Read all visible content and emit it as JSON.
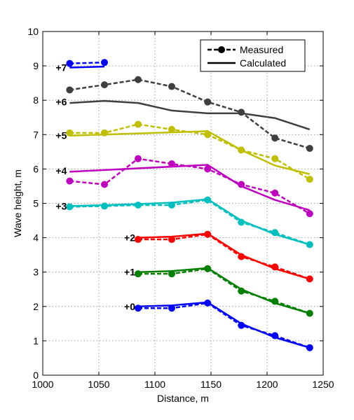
{
  "chart_data": {
    "type": "line",
    "title": "",
    "xlabel": "Distance, m",
    "ylabel": "Wave height, m",
    "xlim": [
      1000,
      1250
    ],
    "ylim": [
      0,
      10
    ],
    "xticks": [
      1000,
      1050,
      1100,
      1150,
      1200,
      1250
    ],
    "yticks": [
      0,
      1,
      2,
      3,
      4,
      5,
      6,
      7,
      8,
      9,
      10
    ],
    "grid": true,
    "legend": {
      "placement": "top-right",
      "entries": [
        {
          "label": "Measured",
          "style": "dashed-marker"
        },
        {
          "label": "Calculated",
          "style": "solid"
        }
      ]
    },
    "series": [
      {
        "offset_label": "+0",
        "color": "#0000ff",
        "label_at": [
          1085,
          2.0
        ],
        "measured": {
          "x": [
            1085,
            1115,
            1147,
            1177,
            1207,
            1238
          ],
          "y": [
            1.95,
            1.95,
            2.1,
            1.45,
            1.15,
            0.8
          ]
        },
        "calculated": {
          "x": [
            1085,
            1115,
            1147,
            1177,
            1207,
            1238
          ],
          "y": [
            2.0,
            2.03,
            2.12,
            1.5,
            1.1,
            0.8
          ]
        }
      },
      {
        "offset_label": "+1",
        "color": "#007f00",
        "label_at": [
          1085,
          3.0
        ],
        "measured": {
          "x": [
            1085,
            1115,
            1147,
            1177,
            1207,
            1238
          ],
          "y": [
            2.95,
            2.95,
            3.1,
            2.45,
            2.15,
            1.8
          ]
        },
        "calculated": {
          "x": [
            1085,
            1115,
            1147,
            1177,
            1207,
            1238
          ],
          "y": [
            3.0,
            3.03,
            3.12,
            2.5,
            2.1,
            1.8
          ]
        }
      },
      {
        "offset_label": "+2",
        "color": "#ff0000",
        "label_at": [
          1085,
          4.0
        ],
        "measured": {
          "x": [
            1085,
            1115,
            1147,
            1177,
            1207,
            1238
          ],
          "y": [
            3.95,
            3.95,
            4.1,
            3.45,
            3.15,
            2.8
          ]
        },
        "calculated": {
          "x": [
            1085,
            1115,
            1147,
            1177,
            1207,
            1238
          ],
          "y": [
            4.0,
            4.03,
            4.12,
            3.5,
            3.1,
            2.8
          ]
        }
      },
      {
        "offset_label": "+3",
        "color": "#00bfbf",
        "label_at": [
          1024,
          4.92
        ],
        "measured": {
          "x": [
            1024,
            1055,
            1085,
            1115,
            1147,
            1177,
            1207,
            1238
          ],
          "y": [
            4.9,
            4.92,
            4.95,
            4.95,
            5.1,
            4.45,
            4.15,
            3.8
          ]
        },
        "calculated": {
          "x": [
            1024,
            1055,
            1085,
            1115,
            1147,
            1177,
            1207,
            1238
          ],
          "y": [
            4.92,
            4.95,
            4.98,
            5.02,
            5.12,
            4.5,
            4.1,
            3.8
          ]
        }
      },
      {
        "offset_label": "+4",
        "color": "#bf00bf",
        "label_at": [
          1024,
          5.95
        ],
        "measured": {
          "x": [
            1024,
            1055,
            1085,
            1115,
            1147,
            1177,
            1207,
            1238
          ],
          "y": [
            5.65,
            5.55,
            6.3,
            6.15,
            6.0,
            5.55,
            5.3,
            4.7
          ]
        },
        "calculated": {
          "x": [
            1024,
            1147,
            1177,
            1207,
            1238
          ],
          "y": [
            5.92,
            6.12,
            5.5,
            5.1,
            4.8
          ]
        }
      },
      {
        "offset_label": "+5",
        "color": "#bfbf00",
        "label_at": [
          1024,
          6.98
        ],
        "measured": {
          "x": [
            1024,
            1055,
            1085,
            1115,
            1147,
            1177,
            1207,
            1238
          ],
          "y": [
            7.05,
            7.05,
            7.3,
            7.15,
            7.0,
            6.55,
            6.3,
            5.7
          ]
        },
        "calculated": {
          "x": [
            1024,
            1147,
            1177,
            1207,
            1238
          ],
          "y": [
            6.97,
            7.1,
            6.55,
            6.1,
            5.85
          ]
        }
      },
      {
        "offset_label": "+6",
        "color": "#3f3f3f",
        "label_at": [
          1024,
          7.95
        ],
        "measured": {
          "x": [
            1024,
            1055,
            1085,
            1115,
            1147,
            1177,
            1207,
            1238
          ],
          "y": [
            8.3,
            8.45,
            8.6,
            8.4,
            7.95,
            7.65,
            6.9,
            6.6
          ]
        },
        "calculated": {
          "x": [
            1024,
            1055,
            1085,
            1115,
            1147,
            1177,
            1207,
            1238
          ],
          "y": [
            7.92,
            7.98,
            7.92,
            7.7,
            7.62,
            7.62,
            7.48,
            7.15
          ]
        }
      },
      {
        "offset_label": "+7",
        "color": "#0000ff",
        "label_at": [
          1024,
          8.95
        ],
        "measured": {
          "x": [
            1024,
            1055
          ],
          "y": [
            9.07,
            9.1
          ]
        },
        "calculated": {
          "x": [
            1024,
            1055
          ],
          "y": [
            8.95,
            8.98
          ]
        }
      }
    ]
  }
}
